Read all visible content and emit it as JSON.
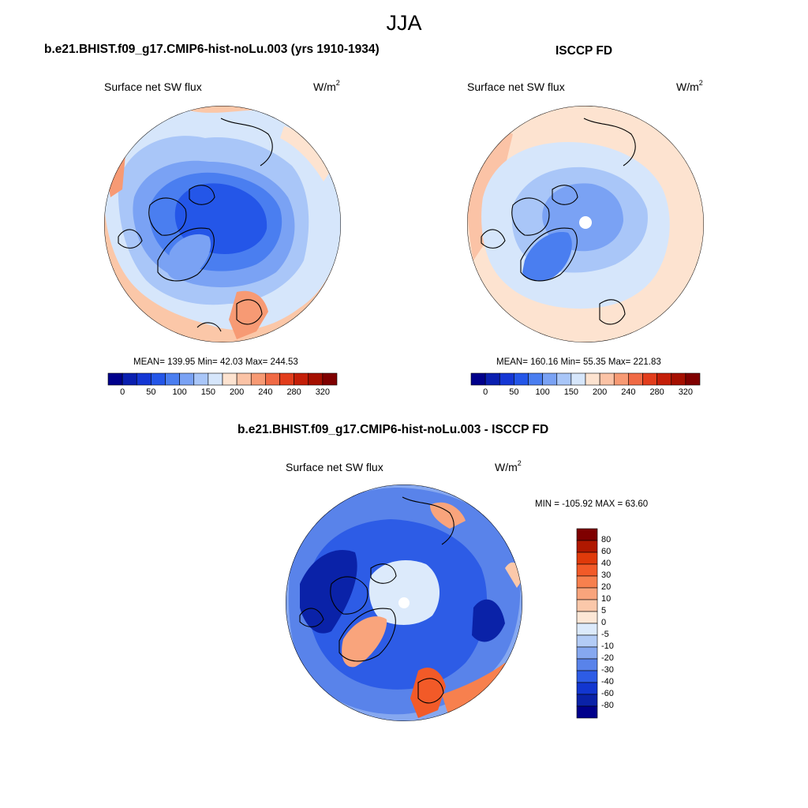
{
  "title": "JJA",
  "panels": [
    {
      "id": "model",
      "title": "b.e21.BHIST.f09_g17.CMIP6-hist-noLu.003 (yrs 1910-1934)",
      "variable": "Surface net SW flux",
      "units": "W/m",
      "units_sup": "2",
      "stats": "MEAN= 139.95  Min=  42.03  Max= 244.53"
    },
    {
      "id": "obs",
      "title": "ISCCP FD",
      "variable": "Surface net SW flux",
      "units": "W/m",
      "units_sup": "2",
      "stats": "MEAN= 160.16  Min=  55.35  Max= 221.83"
    },
    {
      "id": "diff",
      "title": "b.e21.BHIST.f09_g17.CMIP6-hist-noLu.003 - ISCCP FD",
      "variable": "Surface net SW flux",
      "units": "W/m",
      "units_sup": "2",
      "stats": "MIN = -105.92 MAX =  63.60"
    }
  ],
  "colorbar_abs": {
    "tick_labels": [
      "0",
      "50",
      "100",
      "150",
      "200",
      "240",
      "280",
      "320"
    ],
    "colors": [
      "#00008b",
      "#0a1fb0",
      "#1436d4",
      "#2456e8",
      "#4a7ef0",
      "#7aa2f4",
      "#a9c6f8",
      "#d6e6fb",
      "#fde3d0",
      "#fbc3a6",
      "#f79a74",
      "#f06a45",
      "#e23d1c",
      "#c41e08",
      "#a50f00",
      "#7f0000"
    ]
  },
  "colorbar_diff": {
    "tick_labels": [
      "80",
      "60",
      "40",
      "30",
      "20",
      "10",
      "5",
      "0",
      "-5",
      "-10",
      "-20",
      "-30",
      "-40",
      "-60",
      "-80"
    ],
    "colors": [
      "#7f0000",
      "#b01800",
      "#e03a0a",
      "#f25a28",
      "#f7804e",
      "#f9a47c",
      "#fbc8aa",
      "#fde7d6",
      "#dceafb",
      "#b3ccf6",
      "#86a8f0",
      "#5983ea",
      "#2d5ce6",
      "#1236d0",
      "#0a22a8",
      "#00008b"
    ]
  }
}
